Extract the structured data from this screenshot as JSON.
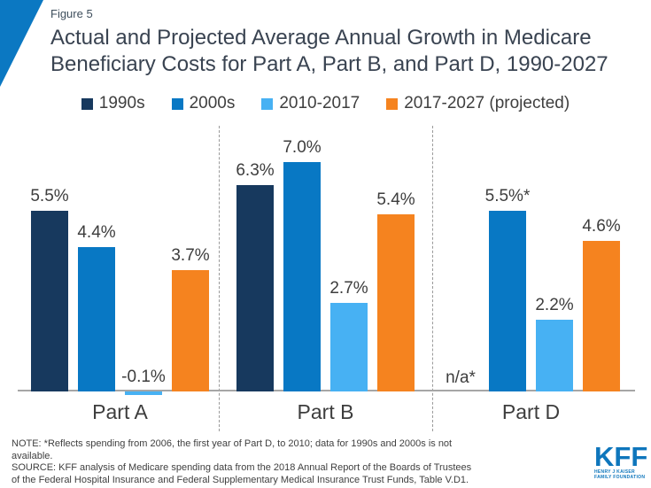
{
  "figure_label": "Figure 5",
  "title_lines": [
    "Actual and Projected Average Annual Growth in Medicare",
    "Beneficiary Costs for Part A, Part B, and Part D, 1990-2027"
  ],
  "chart_data": {
    "type": "bar",
    "title": "Actual and Projected Average Annual Growth in Medicare Beneficiary Costs for Part A, Part B, and Part D, 1990-2027",
    "categories": [
      "Part A",
      "Part B",
      "Part D"
    ],
    "series": [
      {
        "name": "1990s",
        "color": "#17395e",
        "values": [
          5.5,
          6.3,
          null
        ],
        "value_labels": [
          "5.5%",
          "6.3%",
          "n/a*"
        ]
      },
      {
        "name": "2000s",
        "color": "#0878c4",
        "values": [
          4.4,
          7.0,
          5.5
        ],
        "value_labels": [
          "4.4%",
          "7.0%",
          "5.5%*"
        ]
      },
      {
        "name": "2010-2017",
        "color": "#47b1f3",
        "values": [
          -0.1,
          2.7,
          2.2
        ],
        "value_labels": [
          "-0.1%",
          "2.7%",
          "2.2%"
        ]
      },
      {
        "name": "2017-2027 (projected)",
        "color": "#f5831f",
        "values": [
          3.7,
          5.4,
          4.6
        ],
        "value_labels": [
          "3.7%",
          "5.4%",
          "4.6%"
        ]
      }
    ],
    "unit": "%",
    "ylim": [
      -0.5,
      7.5
    ],
    "grid": false,
    "legend_position": "top",
    "value_labels_shown": true
  },
  "notes": {
    "note": "NOTE: *Reflects spending from 2006, the first year of Part D, to 2010; data for 1990s and 2000s is not available.",
    "source": "SOURCE: KFF analysis of Medicare spending data from the 2018 Annual Report of the Boards of Trustees of the Federal Hospital Insurance and Federal Supplementary Medical Insurance Trust Funds, Table V.D1."
  },
  "logo": {
    "name": "KFF",
    "tagline_line1": "HENRY J KAISER",
    "tagline_line2": "FAMILY FOUNDATION"
  },
  "colors": {
    "navy": "#17395e",
    "blue": "#0878c4",
    "light_blue": "#47b1f3",
    "orange": "#f5831f",
    "axis_gray": "#a6a6a6",
    "kff_blue": "#0e76bc",
    "triangle_blue": "#0b78c2"
  }
}
